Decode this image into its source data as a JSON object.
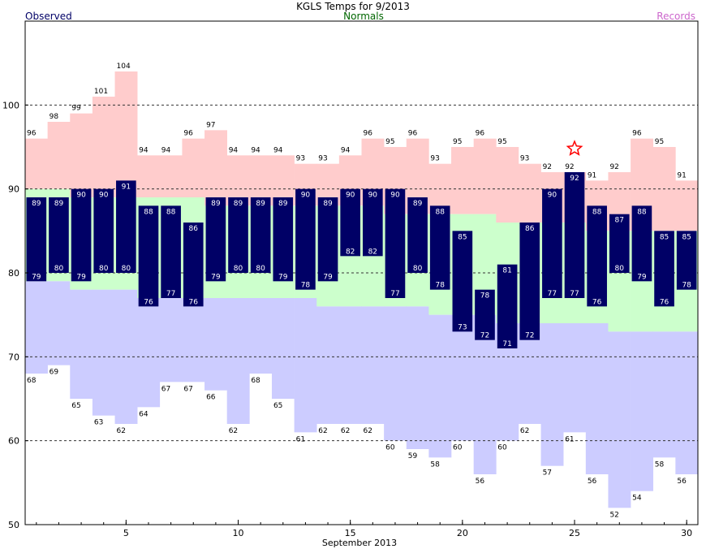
{
  "header": {
    "title": "KGLS Temps for 9/2013",
    "observed_label": "Observed",
    "normals_label": "Normals",
    "records_label": "Records"
  },
  "colors": {
    "observed": "#000066",
    "normals": "#ccffcc",
    "record_high": "#ffcccc",
    "record_low": "#ccccff",
    "observed_label": "#000066",
    "normals_label": "#006600",
    "records_label": "#cc66cc",
    "star": "#ff0000"
  },
  "chart_data": {
    "type": "bar",
    "title": "KGLS Temps for 9/2013",
    "xlabel": "September 2013",
    "ylabel": "",
    "xlim": [
      0.5,
      30.5
    ],
    "ylim": [
      50,
      110
    ],
    "x_ticks": [
      5,
      10,
      15,
      20,
      25,
      30
    ],
    "y_ticks": [
      50,
      60,
      70,
      80,
      90,
      100
    ],
    "grid_dashed_at": [
      60,
      70,
      80,
      90,
      100
    ],
    "days": [
      1,
      2,
      3,
      4,
      5,
      6,
      7,
      8,
      9,
      10,
      11,
      12,
      13,
      14,
      15,
      16,
      17,
      18,
      19,
      20,
      21,
      22,
      23,
      24,
      25,
      26,
      27,
      28,
      29,
      30
    ],
    "series": [
      {
        "name": "Observed High",
        "values": [
          89,
          89,
          90,
          90,
          91,
          88,
          88,
          86,
          89,
          89,
          89,
          89,
          90,
          89,
          90,
          90,
          90,
          89,
          88,
          85,
          78,
          81,
          86,
          90,
          92,
          88,
          87,
          88,
          85,
          85
        ]
      },
      {
        "name": "Observed Low",
        "values": [
          79,
          80,
          79,
          80,
          80,
          76,
          77,
          76,
          79,
          80,
          80,
          79,
          78,
          79,
          82,
          82,
          77,
          80,
          78,
          73,
          72,
          71,
          72,
          77,
          77,
          76,
          80,
          79,
          76,
          78
        ]
      },
      {
        "name": "Normal High",
        "values": [
          90,
          90,
          89,
          89,
          89,
          89,
          89,
          89,
          88,
          88,
          88,
          88,
          88,
          88,
          88,
          88,
          87,
          87,
          87,
          87,
          87,
          86,
          86,
          86,
          86,
          85,
          85,
          85,
          85,
          85
        ]
      },
      {
        "name": "Normal Low",
        "values": [
          79,
          79,
          78,
          78,
          78,
          77,
          77,
          77,
          77,
          77,
          77,
          77,
          77,
          76,
          76,
          76,
          76,
          76,
          75,
          75,
          75,
          74,
          74,
          74,
          74,
          74,
          73,
          73,
          73,
          73
        ]
      },
      {
        "name": "Record High",
        "values": [
          96,
          98,
          99,
          101,
          104,
          94,
          94,
          96,
          97,
          94,
          94,
          94,
          93,
          93,
          94,
          96,
          95,
          96,
          93,
          95,
          96,
          95,
          93,
          92,
          92,
          91,
          92,
          96,
          95,
          91
        ]
      },
      {
        "name": "Record Low",
        "values": [
          68,
          69,
          65,
          63,
          62,
          64,
          67,
          67,
          66,
          62,
          68,
          65,
          61,
          62,
          62,
          62,
          60,
          59,
          58,
          60,
          56,
          60,
          62,
          57,
          61,
          56,
          52,
          54,
          58,
          56
        ]
      }
    ],
    "record_marker": {
      "day": 25,
      "value": 94.8,
      "symbol": "star"
    }
  }
}
